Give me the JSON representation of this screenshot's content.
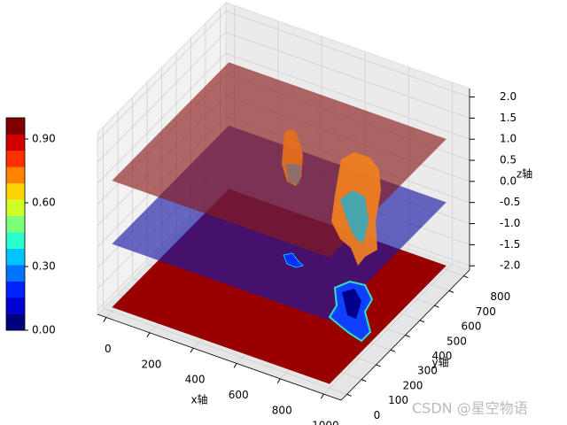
{
  "chart_data": {
    "type": "surface3d",
    "xlabel": "x轴",
    "ylabel": "y轴",
    "zlabel": "z轴",
    "xlim": [
      -40,
      1080
    ],
    "ylim": [
      -40,
      840
    ],
    "zlim": [
      -2.1,
      2.2
    ],
    "xticks": [
      0,
      200,
      400,
      600,
      800,
      1000
    ],
    "yticks": [
      0,
      100,
      200,
      300,
      400,
      500,
      600,
      700,
      800
    ],
    "zticks": [
      {
        "value": -2,
        "label": "-2.0"
      },
      -1.5,
      {
        "value": -1,
        "label": "-1.0"
      },
      -0.5,
      {
        "value": 0,
        "label": "0.0"
      },
      0.5,
      {
        "value": 1,
        "label": "1.0"
      },
      1.5,
      {
        "value": 2,
        "label": "2.0"
      }
    ],
    "grid": true,
    "slices": [
      {
        "z": -2,
        "color": "#990000",
        "opacity": 1
      },
      {
        "z": -0.5,
        "color": "#1a1aa6",
        "opacity": 0.65
      },
      {
        "z": 1,
        "color": "#8b1a1a",
        "opacity": 0.65
      }
    ],
    "colorbar": {
      "lim": [
        0,
        1
      ],
      "ticks": [
        {
          "value": 0,
          "label": "0.00"
        },
        {
          "value": 0.3,
          "label": "0.30"
        },
        {
          "value": 0.6,
          "label": "0.60"
        },
        {
          "value": 0.9,
          "label": "0.90"
        }
      ],
      "colormap": [
        "#00007f",
        "#0000d0",
        "#0022ff",
        "#0074ff",
        "#00c4ff",
        "#29ffce",
        "#7dff7a",
        "#ceff29",
        "#ffd500",
        "#ff8200",
        "#ff3000",
        "#d00000",
        "#7f0000"
      ]
    },
    "watermark": "CSDN @星空物语"
  }
}
